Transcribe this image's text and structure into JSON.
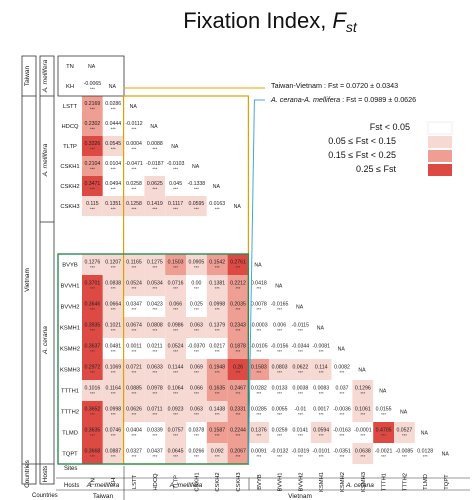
{
  "chart_data": {
    "type": "heatmap",
    "title": "Fixation Index, ",
    "title_sub": "st",
    "title_var": "F",
    "annotations": {
      "tw_vn": "Taiwan-Vietnam : Fst = 0.0720 ± 0.0343",
      "ac_am_species": "A. cerana-A. mellifera",
      "ac_am_value": " : Fst = 0.0989 ± 0.0626"
    },
    "legend": {
      "items": [
        {
          "label": "Fst < 0.05",
          "color": "#ffffff"
        },
        {
          "label": "0.05 ≤ Fst < 0.15",
          "color": "#f7d9d4"
        },
        {
          "label": "0.15 ≤ Fst < 0.25",
          "color": "#ee9e93"
        },
        {
          "label": "0.25 ≤ Fst",
          "color": "#dd4a43"
        }
      ]
    },
    "row_labels": [
      "TN",
      "KH",
      "LSTT",
      "HDCQ",
      "TLTP",
      "CSKH1",
      "CSKH2",
      "CSKH3",
      "BVYB",
      "BVVH1",
      "BVVH2",
      "KSMH1",
      "KSMH2",
      "KSMH3",
      "TTTH1",
      "TTTH2",
      "TLMD",
      "TQPT"
    ],
    "col_labels": [
      "TN",
      "KH",
      "LSTT",
      "HDCQ",
      "TLTP",
      "CSKH1",
      "CSKH2",
      "CSKH3",
      "BVYB",
      "BVVH1",
      "BVVH2",
      "KSMH1",
      "KSMH2",
      "KSMH3",
      "TTTH1",
      "TTTH2",
      "TLMD",
      "TQPT"
    ],
    "bottom_header": {
      "sites_label": "Sites",
      "hosts_label": "Hosts",
      "countries_label": "Countries",
      "hosts": [
        "A. mellifera",
        "A. mellifera",
        "A. cerana"
      ],
      "countries": [
        "Taiwan",
        "Vietnam"
      ]
    },
    "left_header": {
      "countries_label": "Countries",
      "hosts_label": "Hosts",
      "countries": [
        "Taiwan",
        "Vietnam"
      ],
      "hosts": [
        "A. mellifera",
        "A. mellifera",
        "A. cerana"
      ]
    },
    "na": "NA",
    "stars": "***",
    "values": [
      [],
      [
        "-0.0065"
      ],
      [
        "0.2169",
        "0.0286"
      ],
      [
        "0.2302",
        "0.0444",
        "-0.0112"
      ],
      [
        "0.3326",
        "0.0545",
        "0.0004",
        "0.0088"
      ],
      [
        "0.2104",
        "0.0104",
        "-0.0471",
        "-0.0187",
        "-0.0103"
      ],
      [
        "0.3471",
        "0.0494",
        "0.0258",
        "0.0625",
        "0.045",
        "-0.1338"
      ],
      [
        "0.115",
        "0.1351",
        "0.1258",
        "0.1419",
        "0.1117",
        "0.0595",
        "0.0163"
      ],
      [
        "0.1276",
        "0.1207",
        "0.1165",
        "0.1275",
        "0.1503",
        "0.0905",
        "0.1542",
        "0.2761"
      ],
      [
        "0.3701",
        "0.0838",
        "0.0524",
        "0.0534",
        "0.0716",
        "0.00",
        "0.1381",
        "0.2212",
        "0.0418"
      ],
      [
        "0.3646",
        "0.0664",
        "0.0347",
        "0.0423",
        "0.066",
        "0.025",
        "0.0998",
        "0.2035",
        "0.0078",
        "-0.0165"
      ],
      [
        "0.3935",
        "0.1021",
        "0.0674",
        "0.0808",
        "0.0986",
        "0.063",
        "0.1379",
        "0.2343",
        "-0.0003",
        "0.006",
        "-0.0115"
      ],
      [
        "0.3637",
        "0.0481",
        "0.0011",
        "0.0211",
        "0.0524",
        "-0.0370",
        "0.0217",
        "0.1878",
        "-0.0105",
        "-0.0156",
        "-0.0344",
        "-0.0081"
      ],
      [
        "0.2972",
        "0.1069",
        "0.0721",
        "0.0633",
        "0.1144",
        "0.069",
        "0.1948",
        "0.26",
        "0.1583",
        "0.0803",
        "0.0622",
        "0.114",
        "0.0082"
      ],
      [
        "0.1016",
        "0.1164",
        "0.0885",
        "0.0978",
        "0.1064",
        "0.066",
        "0.1635",
        "0.2467",
        "0.0282",
        "0.0133",
        "0.0038",
        "0.0083",
        "0.037",
        "0.1296"
      ],
      [
        "0.3652",
        "0.0998",
        "0.0626",
        "0.0711",
        "0.0923",
        "0.063",
        "0.1438",
        "0.2331",
        "0.0285",
        "0.0055",
        "-0.01",
        "0.0017",
        "-0.0036",
        "0.1061",
        "0.0155"
      ],
      [
        "0.3635",
        "0.0746",
        "0.0404",
        "0.0339",
        "0.0757",
        "0.0378",
        "0.1587",
        "0.2244",
        "0.1376",
        "0.0259",
        "0.0141",
        "0.0594",
        "-0.0163",
        "-0.0001",
        "0.4705",
        "0.0527"
      ],
      [
        "0.3668",
        "0.0887",
        "0.0327",
        "0.0437",
        "0.0645",
        "0.0266",
        "0.092",
        "0.2067",
        "0.0091",
        "-0.0132",
        "-0.0319",
        "-0.0101",
        "-0.0351",
        "0.0638",
        "-0.0021",
        "-0.0085",
        "0.0128"
      ]
    ],
    "color_scale": [
      {
        "min": null,
        "max": 0.05,
        "color": "#ffffff"
      },
      {
        "min": 0.05,
        "max": 0.15,
        "color": "#f7d9d4"
      },
      {
        "min": 0.15,
        "max": 0.25,
        "color": "#ee9e93"
      },
      {
        "min": 0.25,
        "max": null,
        "color": "#dd4a43"
      }
    ],
    "frame_colors": {
      "taiwan": "#333333",
      "mellifera": "#e0a100",
      "cerana": "#2d8a57",
      "line": "#f0a000",
      "blue": "#4aa3df"
    }
  }
}
